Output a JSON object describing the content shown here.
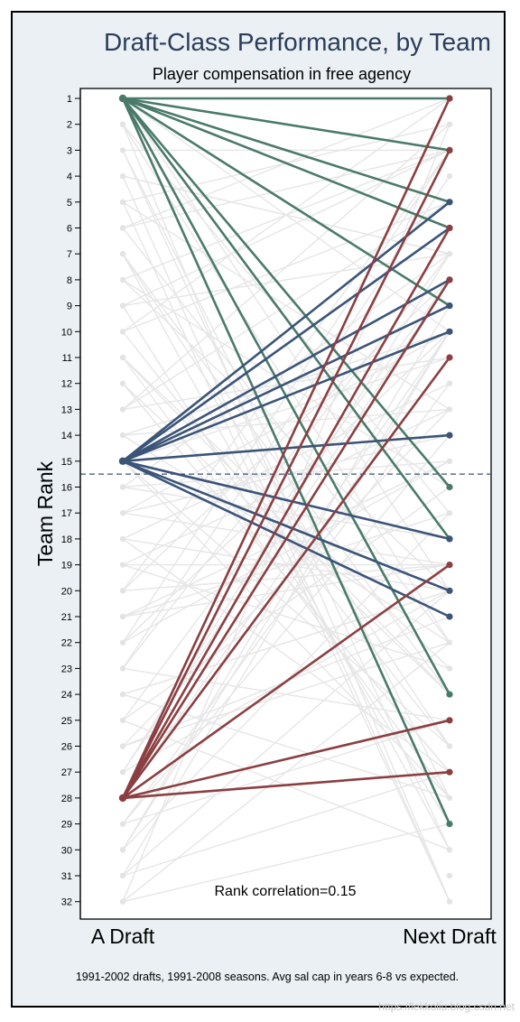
{
  "chart_data": {
    "type": "line",
    "title": "Draft-Class Performance, by Team",
    "subtitle": "Player compensation in free agency",
    "ylabel": "Team Rank",
    "xlabels": [
      "A Draft",
      "Next Draft"
    ],
    "ylim": [
      1,
      32
    ],
    "y_reversed": true,
    "y_ticks": [
      "1",
      "2",
      "3",
      "4",
      "5",
      "6",
      "7",
      "8",
      "9",
      "10",
      "11",
      "12",
      "13",
      "14",
      "15",
      "16",
      "17",
      "18",
      "19",
      "20",
      "21",
      "22",
      "23",
      "24",
      "25",
      "26",
      "27",
      "28",
      "29",
      "30",
      "31",
      "32"
    ],
    "reference_line": 15.5,
    "annotation": "Rank correlation=0.15",
    "footnote": "1991-2002 drafts, 1991-2008 seasons. Avg sal cap in years 6-8 vs expected.",
    "watermark": "https://lekkoliu.blog.csdn.net",
    "colors": {
      "background": "#eaf0f3",
      "plot_bg": "#ffffff",
      "rank1": "#4a7a6a",
      "rank15": "#3b5478",
      "rank28": "#8b3f42",
      "background_lines": "#e6e6e6",
      "title": "#2b3d5b"
    },
    "series": [
      {
        "name": "1",
        "color": "#4a7a6a",
        "from": 1,
        "to": [
          1,
          3,
          5,
          6,
          9,
          16,
          18,
          24,
          29
        ]
      },
      {
        "name": "15",
        "color": "#3b5478",
        "from": 15,
        "to": [
          5,
          6,
          8,
          9,
          10,
          14,
          18,
          20,
          21
        ]
      },
      {
        "name": "28",
        "color": "#8b3f42",
        "from": 28,
        "to": [
          1,
          3,
          6,
          8,
          11,
          19,
          25,
          27
        ]
      }
    ]
  }
}
